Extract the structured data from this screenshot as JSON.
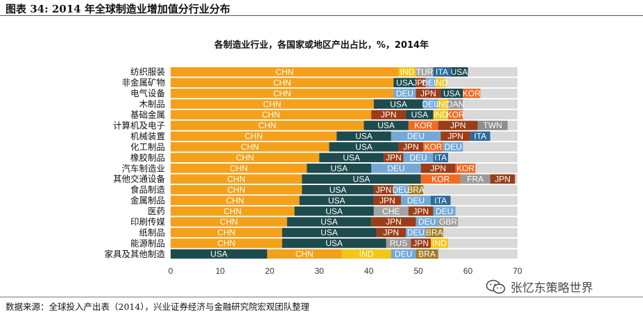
{
  "header": {
    "title": "图表 34:  2014 年全球制造业增加值分行业分布"
  },
  "footer": {
    "source": "数据来源：全球投入产出表（2014），兴业证券经济与金融研究院宏观团队整理"
  },
  "watermark": {
    "text": "张忆东策略世界",
    "icon": "wechat-icon"
  },
  "chart_data": {
    "type": "stacked-bar-horizontal",
    "title": "各制造业行业，各国家或地区产出占比，%，2014年",
    "xlim": [
      0,
      70
    ],
    "xticks": [
      0,
      10,
      20,
      30,
      40,
      50,
      60,
      70
    ],
    "grid": false,
    "total": 70,
    "country_colors": {
      "CHN": "#f4a01a",
      "USA": "#1d4b4e",
      "JPN": "#9b3d18",
      "DEU": "#74a9d6",
      "KOR": "#f26a22",
      "ITA": "#2b6a9c",
      "IND": "#f5c518",
      "TUR": "#a6a6a6",
      "GBR": "#9e9e9e",
      "CHE": "#a3a3a3",
      "RUS": "#9a9a9a",
      "FRA": "#9a9a9a",
      "TWN": "#8e8e8e",
      "DNK": "#6d6d6d",
      "BRA": "#a27c1f",
      "REST": "#d9d9d9"
    },
    "rows": [
      {
        "industry": "纺织服装",
        "segments": [
          [
            "CHN",
            46
          ],
          [
            "IND",
            3.5
          ],
          [
            "TUR",
            3.5
          ],
          [
            "ITA",
            3.5
          ],
          [
            "USA",
            3.5
          ]
        ]
      },
      {
        "industry": "非金属矿物",
        "segments": [
          [
            "CHN",
            45
          ],
          [
            "USA",
            4.5
          ],
          [
            "JPN",
            2
          ],
          [
            "DEU",
            2
          ],
          [
            "IND",
            2
          ]
        ]
      },
      {
        "industry": "电气设备",
        "segments": [
          [
            "CHN",
            45
          ],
          [
            "DEU",
            4.5
          ],
          [
            "JPN",
            5
          ],
          [
            "USA",
            4.5
          ],
          [
            "KOR",
            3.5
          ]
        ]
      },
      {
        "industry": "木制品",
        "segments": [
          [
            "CHN",
            41
          ],
          [
            "USA",
            10
          ],
          [
            "DEU",
            3
          ],
          [
            "IND",
            2
          ],
          [
            "DAN",
            3
          ]
        ]
      },
      {
        "industry": "基础金属",
        "segments": [
          [
            "CHN",
            40.5
          ],
          [
            "JPN",
            7
          ],
          [
            "USA",
            5.5
          ],
          [
            "IND",
            3
          ],
          [
            "KOR",
            3
          ]
        ]
      },
      {
        "industry": "计算机及电子",
        "segments": [
          [
            "CHN",
            39
          ],
          [
            "USA",
            9
          ],
          [
            "KOR",
            6
          ],
          [
            "JPN",
            8
          ],
          [
            "TWN",
            6
          ]
        ]
      },
      {
        "industry": "机械装置",
        "segments": [
          [
            "CHN",
            33.5
          ],
          [
            "USA",
            11
          ],
          [
            "DEU",
            10
          ],
          [
            "JPN",
            6
          ],
          [
            "ITA",
            4
          ]
        ]
      },
      {
        "industry": "化工制品",
        "segments": [
          [
            "CHN",
            32
          ],
          [
            "USA",
            14
          ],
          [
            "JPN",
            5
          ],
          [
            "KOR",
            4
          ],
          [
            "DEU",
            4
          ]
        ]
      },
      {
        "industry": "橡胶制品",
        "segments": [
          [
            "CHN",
            30
          ],
          [
            "USA",
            13
          ],
          [
            "JPN",
            4
          ],
          [
            "DEU",
            6
          ],
          [
            "ITA",
            3
          ]
        ]
      },
      {
        "industry": "汽车制造业",
        "segments": [
          [
            "CHN",
            27.5
          ],
          [
            "USA",
            13
          ],
          [
            "DEU",
            10
          ],
          [
            "JPN",
            7
          ],
          [
            "KOR",
            4
          ]
        ]
      },
      {
        "industry": "其他交通设备",
        "segments": [
          [
            "CHN",
            26.5
          ],
          [
            "USA",
            24
          ],
          [
            "KOR",
            8
          ],
          [
            "FRA",
            6
          ],
          [
            "JPN",
            5
          ]
        ]
      },
      {
        "industry": "食品制造",
        "segments": [
          [
            "CHN",
            26.5
          ],
          [
            "USA",
            14.5
          ],
          [
            "JPN",
            4
          ],
          [
            "DEU",
            3
          ],
          [
            "BRA",
            3
          ]
        ]
      },
      {
        "industry": "金属制品",
        "segments": [
          [
            "CHN",
            26
          ],
          [
            "USA",
            15
          ],
          [
            "JPN",
            5.5
          ],
          [
            "DEU",
            6
          ],
          [
            "ITA",
            4
          ]
        ]
      },
      {
        "industry": "医药",
        "segments": [
          [
            "CHN",
            25
          ],
          [
            "USA",
            16
          ],
          [
            "CHE",
            7
          ],
          [
            "JPN",
            5
          ],
          [
            "DEU",
            4.5
          ]
        ]
      },
      {
        "industry": "印刷传媒",
        "segments": [
          [
            "CHN",
            23.5
          ],
          [
            "USA",
            17
          ],
          [
            "JPN",
            9
          ],
          [
            "DEU",
            4.5
          ],
          [
            "GBR",
            4
          ]
        ]
      },
      {
        "industry": "纸制品",
        "segments": [
          [
            "CHN",
            22.5
          ],
          [
            "USA",
            19
          ],
          [
            "JPN",
            6
          ],
          [
            "DEU",
            4
          ],
          [
            "BRA",
            3.5
          ]
        ]
      },
      {
        "industry": "能源制品",
        "segments": [
          [
            "CHN",
            22.5
          ],
          [
            "USA",
            21
          ],
          [
            "RUS",
            5
          ],
          [
            "JPN",
            4
          ],
          [
            "IND",
            3.5
          ]
        ]
      },
      {
        "industry": "家具及其他制造",
        "segments": [
          [
            "USA",
            19.5
          ],
          [
            "CHN",
            15
          ],
          [
            "IND",
            10
          ],
          [
            "DEU",
            5
          ],
          [
            "BRA",
            4.5
          ]
        ]
      }
    ]
  }
}
